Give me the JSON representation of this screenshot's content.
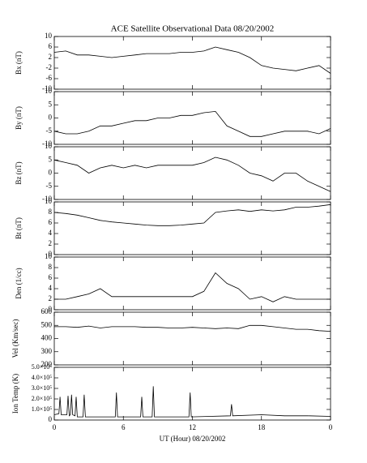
{
  "chart_data": [
    {
      "type": "line",
      "title": "ACE Satellite Observational Data  08/20/2002",
      "ylabel": "Bx (nT)",
      "x": [
        0,
        1,
        2,
        3,
        4,
        5,
        6,
        7,
        8,
        9,
        10,
        11,
        12,
        13,
        14,
        15,
        16,
        17,
        18,
        19,
        20,
        21,
        22,
        23,
        24
      ],
      "values": [
        4,
        4.5,
        3,
        3,
        2.5,
        2,
        2.5,
        3,
        3.5,
        3.5,
        3.5,
        4,
        4,
        4.5,
        6,
        5,
        4,
        2,
        -1,
        -2,
        -2.5,
        -3,
        -2,
        -1,
        -4
      ],
      "xlim": [
        0,
        24
      ],
      "xticks": [
        0,
        6,
        12,
        18,
        {
          "value": 24,
          "label": "0"
        }
      ],
      "ylim": [
        -10,
        10
      ],
      "yticks": [
        -10,
        -6,
        -2,
        2,
        6,
        10
      ],
      "color": "#000000"
    },
    {
      "type": "line",
      "ylabel": "By (nT)",
      "x": [
        0,
        1,
        2,
        3,
        4,
        5,
        6,
        7,
        8,
        9,
        10,
        11,
        12,
        13,
        14,
        15,
        16,
        17,
        18,
        19,
        20,
        21,
        22,
        23,
        24
      ],
      "values": [
        -5,
        -6,
        -6,
        -5,
        -3,
        -3,
        -2,
        -1,
        -1,
        0,
        0,
        1,
        1,
        2,
        2.5,
        -3,
        -5,
        -7,
        -7,
        -6,
        -5,
        -5,
        -5,
        -6,
        -4
      ],
      "xlim": [
        0,
        24
      ],
      "xticks": [
        0,
        6,
        12,
        18,
        {
          "value": 24,
          "label": "0"
        }
      ],
      "ylim": [
        -10,
        10
      ],
      "yticks": [
        -10,
        -5,
        0,
        5,
        10
      ],
      "color": "#000000"
    },
    {
      "type": "line",
      "ylabel": "Bz (nT)",
      "x": [
        0,
        1,
        2,
        3,
        4,
        5,
        6,
        7,
        8,
        9,
        10,
        11,
        12,
        13,
        14,
        15,
        16,
        17,
        18,
        19,
        20,
        21,
        22,
        23,
        24
      ],
      "values": [
        5,
        4,
        3,
        0,
        2,
        3,
        2,
        3,
        2,
        3,
        3,
        3,
        3,
        4,
        6,
        5,
        3,
        0,
        -1,
        -3,
        0,
        0,
        -3,
        -5,
        -7
      ],
      "xlim": [
        0,
        24
      ],
      "xticks": [
        0,
        6,
        12,
        18,
        {
          "value": 24,
          "label": "0"
        }
      ],
      "ylim": [
        -10,
        10
      ],
      "yticks": [
        -10,
        -5,
        0,
        5,
        10
      ],
      "color": "#000000"
    },
    {
      "type": "line",
      "ylabel": "Bt (nT)",
      "x": [
        0,
        1,
        2,
        3,
        4,
        5,
        6,
        7,
        8,
        9,
        10,
        11,
        12,
        13,
        14,
        15,
        16,
        17,
        18,
        19,
        20,
        21,
        22,
        23,
        24
      ],
      "values": [
        8,
        7.8,
        7.5,
        7,
        6.5,
        6.2,
        6,
        5.8,
        5.6,
        5.5,
        5.5,
        5.6,
        5.8,
        6,
        8,
        8.3,
        8.5,
        8.2,
        8.5,
        8.3,
        8.5,
        9,
        9,
        9.2,
        9.5
      ],
      "xlim": [
        0,
        24
      ],
      "xticks": [
        0,
        6,
        12,
        18,
        {
          "value": 24,
          "label": "0"
        }
      ],
      "ylim": [
        0,
        10
      ],
      "yticks": [
        0,
        2,
        4,
        6,
        8,
        10
      ],
      "color": "#000000"
    },
    {
      "type": "line",
      "ylabel": "Den (1/cc)",
      "x": [
        0,
        1,
        2,
        3,
        4,
        5,
        6,
        7,
        8,
        9,
        10,
        11,
        12,
        13,
        14,
        15,
        16,
        17,
        18,
        19,
        20,
        21,
        22,
        23,
        24
      ],
      "values": [
        2,
        2,
        2.5,
        3,
        4,
        2.5,
        2.5,
        2.5,
        2.5,
        2.5,
        2.5,
        2.5,
        2.5,
        3.5,
        7,
        5,
        4,
        2,
        2.5,
        1.5,
        2.5,
        2,
        2,
        2,
        2
      ],
      "xlim": [
        0,
        24
      ],
      "xticks": [
        0,
        6,
        12,
        18,
        {
          "value": 24,
          "label": "0"
        }
      ],
      "ylim": [
        0,
        10
      ],
      "yticks": [
        0,
        2,
        4,
        6,
        8,
        10
      ],
      "color": "#000000"
    },
    {
      "type": "line",
      "ylabel": "Vel (Km/sec)",
      "x": [
        0,
        1,
        2,
        3,
        4,
        5,
        6,
        7,
        8,
        9,
        10,
        11,
        12,
        13,
        14,
        15,
        16,
        17,
        18,
        19,
        20,
        21,
        22,
        23,
        24
      ],
      "values": [
        490,
        490,
        485,
        495,
        480,
        490,
        490,
        490,
        485,
        485,
        480,
        480,
        485,
        480,
        475,
        480,
        475,
        500,
        500,
        490,
        480,
        470,
        470,
        460,
        455
      ],
      "xlim": [
        0,
        24
      ],
      "xticks": [
        0,
        6,
        12,
        18,
        {
          "value": 24,
          "label": "0"
        }
      ],
      "ylim": [
        200,
        600
      ],
      "yticks": [
        200,
        300,
        400,
        500,
        600
      ],
      "color": "#000000"
    },
    {
      "type": "line",
      "ylabel": "Ion Temp (K)",
      "xlabel": "UT (Hour)  08/20/2002",
      "x": [
        0,
        0.4,
        0.5,
        0.6,
        1.1,
        1.2,
        1.3,
        1.4,
        1.5,
        1.6,
        1.8,
        1.9,
        2.0,
        2.5,
        2.6,
        2.7,
        4,
        5.3,
        5.4,
        5.5,
        7.5,
        7.6,
        7.7,
        8.5,
        8.6,
        8.7,
        11.7,
        11.8,
        11.9,
        15.3,
        15.4,
        15.5,
        18,
        20,
        22,
        24
      ],
      "values": [
        50000,
        60000,
        220000,
        50000,
        50000,
        230000,
        40000,
        50000,
        240000,
        50000,
        40000,
        220000,
        30000,
        30000,
        240000,
        30000,
        30000,
        30000,
        260000,
        30000,
        30000,
        220000,
        30000,
        30000,
        320000,
        30000,
        30000,
        260000,
        30000,
        40000,
        150000,
        40000,
        50000,
        40000,
        40000,
        35000
      ],
      "xlim": [
        0,
        24
      ],
      "xticks": [
        0,
        6,
        12,
        18,
        {
          "value": 24,
          "label": "0"
        }
      ],
      "ylim": [
        0,
        500000
      ],
      "yticks": [
        0,
        {
          "value": 100000,
          "label": "1.0×10⁵"
        },
        {
          "value": 200000,
          "label": "2.0×10⁵"
        },
        {
          "value": 300000,
          "label": "3.0×10⁵"
        },
        {
          "value": 400000,
          "label": "4.0×10⁵"
        },
        {
          "value": 500000,
          "label": "5.0×10⁵"
        }
      ],
      "color": "#000000"
    }
  ]
}
